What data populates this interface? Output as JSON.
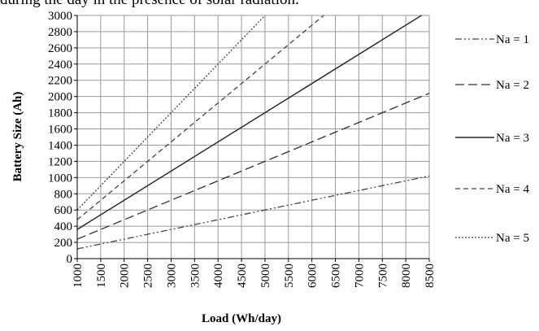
{
  "caption_fragment": "during the day in the presence of solar radiation.",
  "chart_data": {
    "type": "line",
    "title": "",
    "xlabel": "Load (Wh/day)",
    "ylabel": "Battery  Size (Ah)",
    "xlim": [
      1000,
      8500
    ],
    "ylim": [
      0,
      3000
    ],
    "x_ticks": [
      "1000",
      "1500",
      "2000",
      "2500",
      "3000",
      "3500",
      "4000",
      "4500",
      "5000",
      "5500",
      "6000",
      "6500",
      "7000",
      "7500",
      "8000",
      "8500"
    ],
    "y_ticks": [
      "0",
      "200",
      "400",
      "600",
      "800",
      "1000",
      "1200",
      "1400",
      "1600",
      "1800",
      "2000",
      "2200",
      "2400",
      "2600",
      "2800",
      "3000"
    ],
    "grid": true,
    "legend_position": "right",
    "series": [
      {
        "name": "Na = 1",
        "style": "dash-dot-dot",
        "x": [
          1000,
          8500
        ],
        "y": [
          120,
          1020
        ]
      },
      {
        "name": "Na = 2",
        "style": "long-dash",
        "x": [
          1000,
          8500
        ],
        "y": [
          240,
          2040
        ]
      },
      {
        "name": "Na = 3",
        "style": "solid",
        "x": [
          1000,
          8500
        ],
        "y": [
          360,
          3060
        ]
      },
      {
        "name": "Na = 4",
        "style": "dash",
        "x": [
          1000,
          8500
        ],
        "y": [
          480,
          4080
        ]
      },
      {
        "name": "Na = 5",
        "style": "dot",
        "x": [
          1000,
          8500
        ],
        "y": [
          600,
          5100
        ]
      }
    ]
  }
}
